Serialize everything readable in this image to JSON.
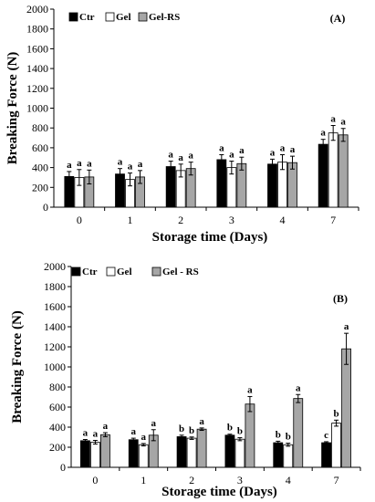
{
  "colors": {
    "Ctr": "#000000",
    "Gel": "#ffffff",
    "Gel-RS": "#a6a6a6"
  },
  "chart_data": [
    {
      "type": "bar",
      "panel_label": "(A)",
      "xlabel": "Storage time (Days)",
      "ylabel": "Breaking Force (N)",
      "ylim": [
        0,
        2000
      ],
      "yticks": [
        0,
        200,
        400,
        600,
        800,
        1000,
        1200,
        1400,
        1600,
        1800,
        2000
      ],
      "categories": [
        "0",
        "1",
        "2",
        "3",
        "4",
        "7"
      ],
      "legend_position": "top-left",
      "grid": false,
      "series": [
        {
          "name": "Ctr",
          "values": [
            310,
            335,
            410,
            480,
            435,
            635
          ],
          "errors": [
            50,
            55,
            55,
            50,
            50,
            50
          ],
          "labels": [
            "a",
            "a",
            "a",
            "a",
            "a",
            "a"
          ]
        },
        {
          "name": "Gel",
          "values": [
            300,
            280,
            370,
            400,
            455,
            750
          ],
          "errors": [
            80,
            65,
            65,
            65,
            75,
            75
          ],
          "labels": [
            "a",
            "a",
            "a",
            "a",
            "a",
            "a"
          ]
        },
        {
          "name": "Gel-RS",
          "values": [
            305,
            305,
            390,
            440,
            450,
            730
          ],
          "errors": [
            70,
            65,
            65,
            65,
            65,
            65
          ],
          "labels": [
            "a",
            "a",
            "a",
            "a",
            "a",
            "a"
          ]
        }
      ]
    },
    {
      "type": "bar",
      "panel_label": "(B)",
      "xlabel": "Storage time (Days)",
      "ylabel": "Breaking Force (N)",
      "ylim": [
        0,
        2000
      ],
      "yticks": [
        0,
        200,
        400,
        600,
        800,
        1000,
        1200,
        1400,
        1600,
        1800,
        2000
      ],
      "categories": [
        "0",
        "1",
        "2",
        "3",
        "4",
        "7"
      ],
      "legend_position": "top-left",
      "grid": false,
      "series": [
        {
          "name": "Ctr",
          "values": [
            265,
            275,
            305,
            320,
            245,
            245
          ],
          "errors": [
            12,
            15,
            15,
            10,
            15,
            10
          ],
          "labels": [
            "a",
            "a",
            "b",
            "b",
            "b",
            "c"
          ]
        },
        {
          "name": "Gel",
          "values": [
            250,
            225,
            290,
            280,
            225,
            440
          ],
          "errors": [
            18,
            12,
            12,
            15,
            15,
            30
          ],
          "labels": [
            "a",
            "a",
            "b",
            "b",
            "b",
            "b"
          ]
        },
        {
          "name": "Gel - RS",
          "values": [
            325,
            320,
            380,
            630,
            685,
            1180
          ],
          "errors": [
            20,
            55,
            12,
            75,
            40,
            155
          ],
          "labels": [
            "a",
            "a",
            "a",
            "a",
            "a",
            "a"
          ]
        }
      ]
    }
  ]
}
